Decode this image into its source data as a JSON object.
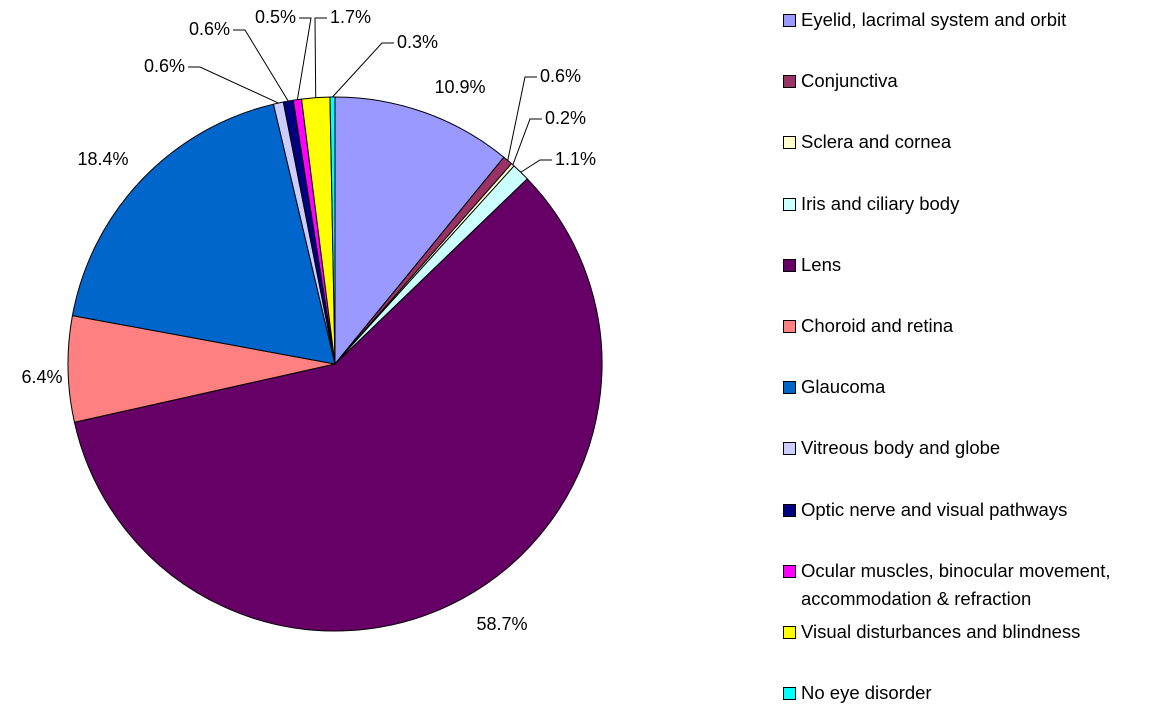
{
  "chart_data": {
    "type": "pie",
    "categories": [
      "Eyelid, lacrimal system and orbit",
      "Conjunctiva",
      "Sclera and cornea",
      "Iris and ciliary body",
      "Lens",
      "Choroid and retina",
      "Glaucoma",
      "Vitreous body and globe",
      "Optic nerve and visual pathways",
      "Ocular muscles, binocular movement, accommodation & refraction",
      "Visual disturbances and blindness",
      "No eye disorder"
    ],
    "values": [
      10.9,
      0.6,
      0.2,
      1.1,
      58.7,
      6.4,
      18.4,
      0.6,
      0.6,
      0.5,
      1.7,
      0.3
    ],
    "value_labels": [
      "10.9%",
      "0.6%",
      "0.2%",
      "1.1%",
      "58.7%",
      "6.4%",
      "18.4%",
      "0.6%",
      "0.6%",
      "0.5%",
      "1.7%",
      "0.3%"
    ],
    "colors": [
      "#9999ff",
      "#993366",
      "#ffffcc",
      "#ccffff",
      "#660066",
      "#ff8080",
      "#0066cc",
      "#ccccff",
      "#000080",
      "#ff00ff",
      "#ffff00",
      "#00ffff"
    ],
    "legend": "right"
  }
}
